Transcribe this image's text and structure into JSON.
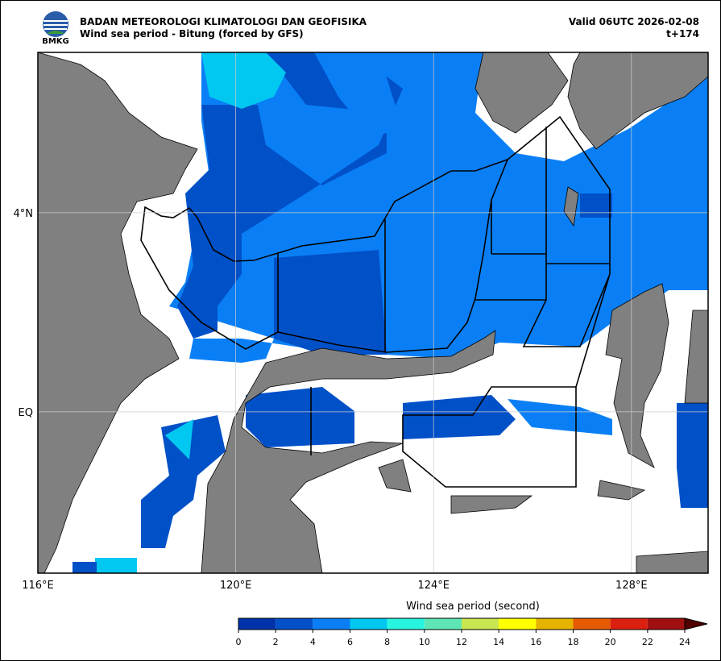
{
  "header": {
    "logo_text": "BMKG",
    "organization": "BADAN METEOROLOGI KLIMATOLOGI DAN GEOFISIKA",
    "title": "Wind sea period - Bitung (forced by GFS)",
    "valid": "Valid 06UTC 2026-02-08",
    "step": "t+174"
  },
  "map": {
    "xlim": [
      116,
      129.55
    ],
    "ylim": [
      -3.24,
      7.22
    ],
    "xticks": [
      {
        "value": 116,
        "label": "116°E"
      },
      {
        "value": 120,
        "label": "120°E"
      },
      {
        "value": 124,
        "label": "124°E"
      },
      {
        "value": 128,
        "label": "128°E"
      }
    ],
    "yticks": [
      {
        "value": 4,
        "label": "4°N"
      },
      {
        "value": 0,
        "label": "EQ"
      }
    ],
    "grid": true
  },
  "colorbar": {
    "label": "Wind sea period (second)",
    "ticks": [
      0,
      2,
      4,
      6,
      8,
      10,
      12,
      14,
      16,
      18,
      20,
      22,
      24
    ],
    "colors": [
      "#0033aa",
      "#0050c8",
      "#0a7ff5",
      "#00c8f0",
      "#28f5e0",
      "#5ee6b4",
      "#c8e650",
      "#ffff00",
      "#e6b400",
      "#e65a00",
      "#dc2010",
      "#a01010",
      "#500000"
    ]
  }
}
